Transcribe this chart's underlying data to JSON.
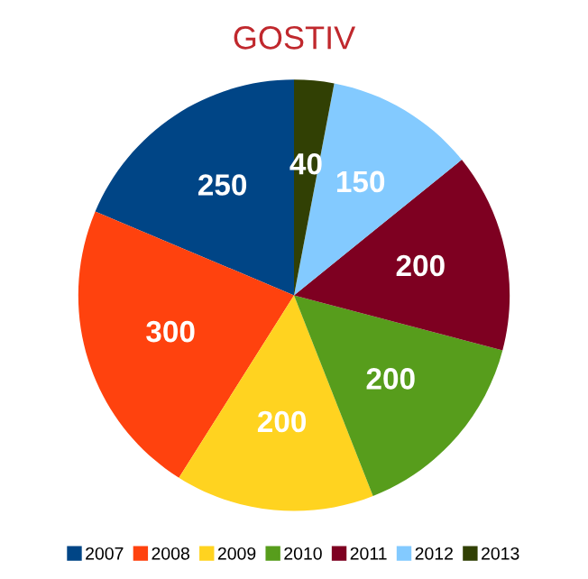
{
  "chart_data": {
    "type": "pie",
    "title": "GOSTIV",
    "categories": [
      "2007",
      "2008",
      "2009",
      "2010",
      "2011",
      "2012",
      "2013"
    ],
    "values": [
      250,
      300,
      200,
      200,
      200,
      150,
      40
    ],
    "colors": [
      "#004586",
      "#ff420e",
      "#ffd320",
      "#579d1c",
      "#7e0021",
      "#83caff",
      "#314004"
    ],
    "data_labels": true,
    "legend": "bottom"
  }
}
